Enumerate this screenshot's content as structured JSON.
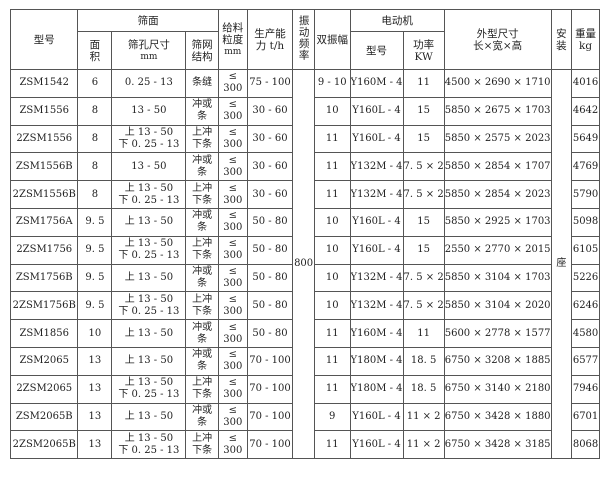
{
  "header": {
    "model": "型号",
    "screen_surface": "筛面",
    "area": [
      "面",
      "积"
    ],
    "hole_size": [
      "筛孔尺寸",
      "mm"
    ],
    "mesh_structure": [
      "筛网",
      "结构"
    ],
    "feed_size": [
      "给料",
      "粒度",
      "mm"
    ],
    "capacity": [
      "生产能",
      "力  t/h"
    ],
    "vibration_freq": "振动频率",
    "double_amplitude": "双振幅",
    "motor": "电动机",
    "motor_model": "型号",
    "motor_power": [
      "功率",
      "KW"
    ],
    "dimensions": [
      "外型尺寸",
      "长×宽×高"
    ],
    "install": [
      "安",
      "装"
    ],
    "weight": [
      "重量",
      "kg"
    ]
  },
  "merged": {
    "vibration_freq": "800",
    "install": "座"
  },
  "rows": [
    {
      "model": "ZSM1542",
      "area": "6",
      "hole": [
        "0. 25 - 13"
      ],
      "mesh": [
        "条缝"
      ],
      "feed": [
        "≤",
        "300"
      ],
      "capacity": "75 - 100",
      "amp": "9 - 10",
      "motor": "Y160M - 4",
      "power": "11",
      "dims": "4500 × 2690 × 1710",
      "weight": "4016"
    },
    {
      "model": "ZSM1556",
      "area": "8",
      "hole": [
        "13 - 50"
      ],
      "mesh": [
        "冲或",
        "条"
      ],
      "feed": [
        "≤",
        "300"
      ],
      "capacity": "30 - 60",
      "amp": "10",
      "motor": "Y160L - 4",
      "power": "15",
      "dims": "5850 × 2675 × 1703",
      "weight": "4642"
    },
    {
      "model": "2ZSM1556",
      "area": "8",
      "hole": [
        "上 13 - 50",
        "下 0. 25 - 13"
      ],
      "mesh": [
        "上冲",
        "下条"
      ],
      "feed": [
        "≤",
        "300"
      ],
      "capacity": "30 - 60",
      "amp": "11",
      "motor": "Y160L - 4",
      "power": "15",
      "dims": "5850 × 2575 × 2023",
      "weight": "5649"
    },
    {
      "model": "ZSM1556B",
      "area": "8",
      "hole": [
        "13 - 50"
      ],
      "mesh": [
        "冲或",
        "条"
      ],
      "feed": [
        "≤",
        "300"
      ],
      "capacity": "30 - 60",
      "amp": "11",
      "motor": "Y132M - 4",
      "power": "7. 5 × 2",
      "dims": "5850 × 2854 × 1707",
      "weight": "4769"
    },
    {
      "model": "2ZSM1556B",
      "area": "8",
      "hole": [
        "上 13 - 50",
        "下 0. 25 - 13"
      ],
      "mesh": [
        "上冲",
        "下条"
      ],
      "feed": [
        "≤",
        "300"
      ],
      "capacity": "30 - 60",
      "amp": "11",
      "motor": "Y132M - 4",
      "power": "7. 5 × 2",
      "dims": "5850 × 2854 × 2023",
      "weight": "5790"
    },
    {
      "model": "ZSM1756A",
      "area": "9. 5",
      "hole": [
        "上 13 - 50"
      ],
      "mesh": [
        "冲或",
        "条"
      ],
      "feed": [
        "≤",
        "300"
      ],
      "capacity": "50 - 80",
      "amp": "10",
      "motor": "Y160L - 4",
      "power": "15",
      "dims": "5850 × 2925 × 1703",
      "weight": "5098"
    },
    {
      "model": "2ZSM1756",
      "area": "9. 5",
      "hole": [
        "上 13 - 50",
        "下 0. 25 - 13"
      ],
      "mesh": [
        "上冲",
        "下条"
      ],
      "feed": [
        "≤",
        "300"
      ],
      "capacity": "50 - 80",
      "amp": "10",
      "motor": "Y160L - 4",
      "power": "15",
      "dims": "2550 × 2770 × 2015",
      "weight": "6105"
    },
    {
      "model": "ZSM1756B",
      "area": "9. 5",
      "hole": [
        "上 13 - 50"
      ],
      "mesh": [
        "冲或",
        "条"
      ],
      "feed": [
        "≤",
        "300"
      ],
      "capacity": "50 - 80",
      "amp": "10",
      "motor": "Y132M - 4",
      "power": "7. 5 × 2",
      "dims": "5850 × 3104 × 1703",
      "weight": "5226"
    },
    {
      "model": "2ZSM1756B",
      "area": "9. 5",
      "hole": [
        "上 13 - 50",
        "下 0. 25 - 13"
      ],
      "mesh": [
        "上冲",
        "下条"
      ],
      "feed": [
        "≤",
        "300"
      ],
      "capacity": "50 - 80",
      "amp": "10",
      "motor": "Y132M - 4",
      "power": "7. 5 × 2",
      "dims": "5850 × 3104 × 2020",
      "weight": "6246"
    },
    {
      "model": "ZSM1856",
      "area": "10",
      "hole": [
        "上 13 - 50"
      ],
      "mesh": [
        "冲或",
        "条"
      ],
      "feed": [
        "≤",
        "300"
      ],
      "capacity": "50 - 80",
      "amp": "11",
      "motor": "Y160M - 4",
      "power": "11",
      "dims": "5600 × 2778 × 1577",
      "weight": "4580"
    },
    {
      "model": "ZSM2065",
      "area": "13",
      "hole": [
        "上 13 - 50"
      ],
      "mesh": [
        "冲或",
        "条"
      ],
      "feed": [
        "≤",
        "300"
      ],
      "capacity": "70 - 100",
      "amp": "11",
      "motor": "Y180M - 4",
      "power": "18. 5",
      "dims": "6750 × 3208 × 1885",
      "weight": "6577"
    },
    {
      "model": "2ZSM2065",
      "area": "13",
      "hole": [
        "上 13 - 50",
        "下 0. 25 - 13"
      ],
      "mesh": [
        "上冲",
        "下条"
      ],
      "feed": [
        "≤",
        "300"
      ],
      "capacity": "70 - 100",
      "amp": "11",
      "motor": "Y180M - 4",
      "power": "18. 5",
      "dims": "6750 × 3140 × 2180",
      "weight": "7946"
    },
    {
      "model": "ZSM2065B",
      "area": "13",
      "hole": [
        "上 13 - 50"
      ],
      "mesh": [
        "冲或",
        "条"
      ],
      "feed": [
        "≤",
        "300"
      ],
      "capacity": "70 - 100",
      "amp": "9",
      "motor": "Y160L - 4",
      "power": "11 × 2",
      "dims": "6750 × 3428 × 1880",
      "weight": "6701"
    },
    {
      "model": "2ZSM2065B",
      "area": "13",
      "hole": [
        "上 13 - 50",
        "下 0. 25 - 13"
      ],
      "mesh": [
        "上冲",
        "下条"
      ],
      "feed": [
        "≤",
        "300"
      ],
      "capacity": "70 - 100",
      "amp": "11",
      "motor": "Y160L - 4",
      "power": "11 × 2",
      "dims": "6750 × 3428 × 3185",
      "weight": "8068"
    }
  ]
}
